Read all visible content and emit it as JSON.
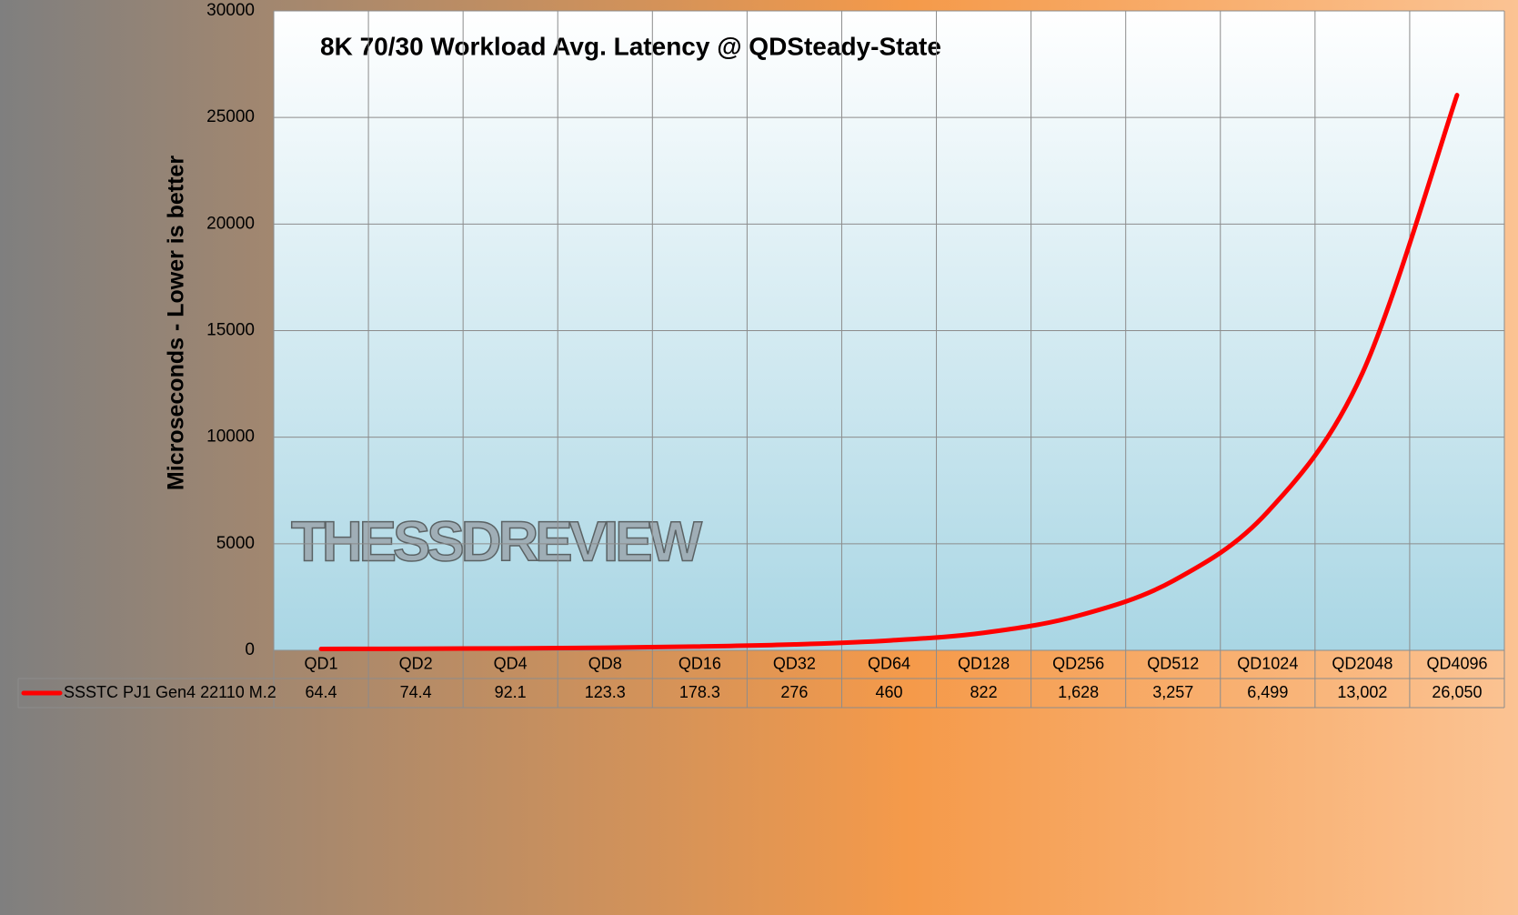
{
  "chart_data": {
    "type": "line",
    "title": "8K 70/30 Workload Avg. Latency @ QDSteady-State",
    "y_label": "Microseconds - Lower is better",
    "watermark": "THESSDREVIEW",
    "categories": [
      "QD1",
      "QD2",
      "QD4",
      "QD8",
      "QD16",
      "QD32",
      "QD64",
      "QD128",
      "QD256",
      "QD512",
      "QD1024",
      "QD2048",
      "QD4096"
    ],
    "series": [
      {
        "name": "SSSTC PJ1  Gen4 22110 M.2",
        "color": "#ff0000",
        "values": [
          64.4,
          74.4,
          92.1,
          123.3,
          178.3,
          276,
          460,
          822,
          1628,
          3257,
          6499,
          13002,
          26050
        ],
        "value_labels": [
          "64.4",
          "74.4",
          "92.1",
          "123.3",
          "178.3",
          "276",
          "460",
          "822",
          "1,628",
          "3,257",
          "6,499",
          "13,002",
          "26,050"
        ]
      }
    ],
    "ylim": [
      0,
      30000
    ],
    "yticks": [
      0,
      5000,
      10000,
      15000,
      20000,
      25000,
      30000
    ],
    "grid": true
  }
}
